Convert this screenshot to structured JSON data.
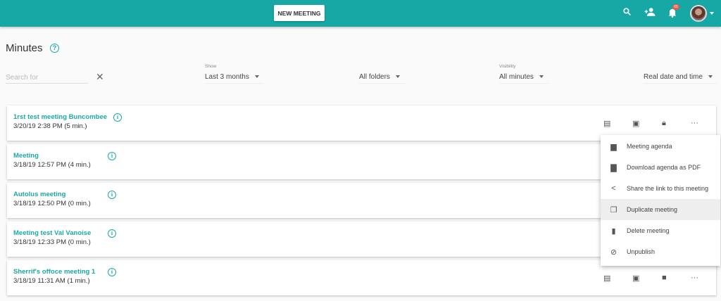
{
  "header": {
    "new_meeting": "NEW MEETING",
    "notification_count": "65",
    "brand_color": "#17a8a6",
    "icons": [
      "search-icon",
      "add-user-icon",
      "bell-icon",
      "avatar"
    ]
  },
  "page": {
    "title": "Minutes"
  },
  "filters": {
    "search_placeholder": "Search for",
    "show_label": "Show",
    "show_value": "Last 3 months",
    "folders_value": "All folders",
    "visibility_label": "Visibility",
    "visibility_value": "All minutes",
    "date_mode_value": "Real date and time"
  },
  "meetings": [
    {
      "name": "1rst test meeting Buncombee",
      "date": "3/20/19 2:38 PM (5 min.)"
    },
    {
      "name": "Meeting",
      "date": "3/18/19 12:57 PM (4 min.)"
    },
    {
      "name": "Autolus meeting",
      "date": "3/18/19 12:50 PM (0 min.)"
    },
    {
      "name": "Meeting test Val Vanoise",
      "date": "3/18/19 12:33 PM (0 min.)"
    },
    {
      "name": "Sherrif's offoce meeting 1",
      "date": "3/18/19 11:31 AM (1 min.)"
    }
  ],
  "context_menu": {
    "items": [
      {
        "label": "Meeting agenda",
        "icon": "document-icon"
      },
      {
        "label": "Download agenda as PDF",
        "icon": "pdf-icon"
      },
      {
        "label": "Share the link to this meeting",
        "icon": "share-icon"
      },
      {
        "label": "Duplicate meeting",
        "icon": "copy-icon",
        "highlighted": true
      },
      {
        "label": "Delete meeting",
        "icon": "trash-icon"
      },
      {
        "label": "Unpublish",
        "icon": "unpublish-icon"
      }
    ]
  }
}
